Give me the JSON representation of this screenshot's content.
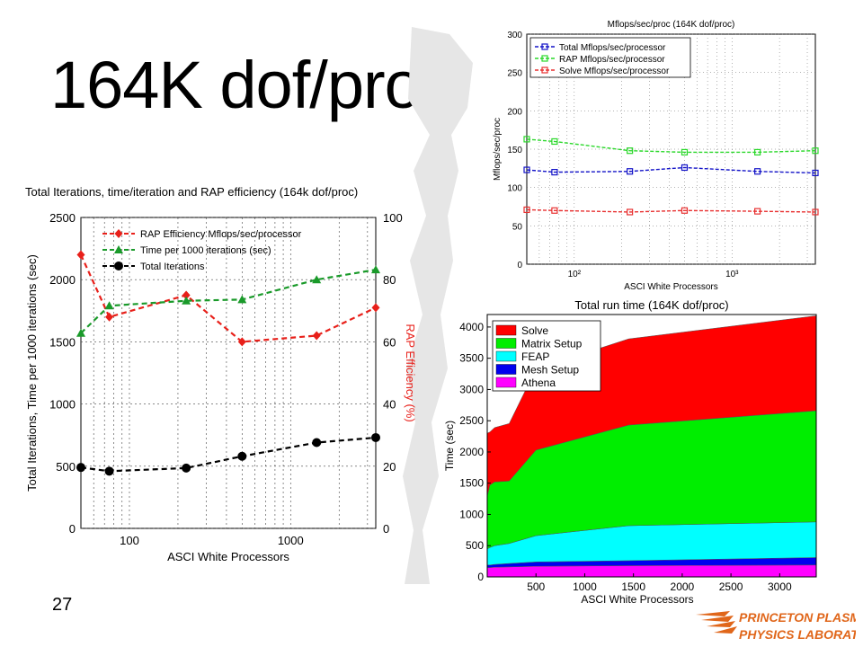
{
  "slide": {
    "title": "164K dof/proc",
    "page_number": "27",
    "logo_line1": "PRINCETON PLASMA",
    "logo_line2": "PHYSICS LABORATORY"
  },
  "colors": {
    "red": "#e8201a",
    "green": "#1a9a2a",
    "black": "#000000",
    "blue": "#1414c8",
    "light_green": "#2ad82a",
    "light_red": "#e83030",
    "solve": "#ff0000",
    "matrix_setup": "#00ee00",
    "feap": "#00ffff",
    "mesh_setup": "#0000ee",
    "athena": "#ff00ff",
    "logo": "#e0661a"
  },
  "chart_data": [
    {
      "type": "line",
      "title": "Total Iterations, time/iteration and RAP efficiency (164k dof/proc)",
      "xlabel": "ASCI White Processors",
      "ylabel": "Total Iterations, Time per 1000 iterations (sec)",
      "y2label": "RAP Efficiency (%)",
      "xscale": "log",
      "xlim": [
        50,
        3375
      ],
      "xticks": [
        100,
        1000
      ],
      "xtick_labels": [
        "100",
        "1000"
      ],
      "ylim": [
        0,
        2500
      ],
      "yticks": [
        0,
        500,
        1000,
        1500,
        2000,
        2500
      ],
      "y2lim": [
        0,
        100
      ],
      "y2ticks": [
        0,
        20,
        40,
        60,
        80,
        100
      ],
      "grid": true,
      "legend_position": "top-left",
      "series": [
        {
          "name": "RAP Efficiency Mflops/sec/processor",
          "axis": "right",
          "marker": "diamond",
          "color": "#e8201a",
          "x": [
            50,
            75,
            225,
            500,
            1450,
            3375
          ],
          "y": [
            88,
            68,
            75,
            60,
            62,
            71
          ]
        },
        {
          "name": "Time per 1000 iterations (sec)",
          "axis": "left",
          "marker": "triangle",
          "color": "#1a9a2a",
          "x": [
            50,
            75,
            225,
            500,
            1450,
            3375
          ],
          "y": [
            1570,
            1790,
            1830,
            1840,
            2000,
            2080
          ]
        },
        {
          "name": "Total Iterations",
          "axis": "left",
          "marker": "circle",
          "color": "#000000",
          "x": [
            50,
            75,
            225,
            500,
            1450,
            3375
          ],
          "y": [
            490,
            460,
            485,
            580,
            690,
            730
          ]
        }
      ]
    },
    {
      "type": "line",
      "title": "Mflops/sec/proc (164K dof/proc)",
      "xlabel": "ASCI White Processors",
      "ylabel": "Mflops/sec/proc",
      "xscale": "log",
      "xlim": [
        50,
        3375
      ],
      "xticks": [
        100,
        1000
      ],
      "xtick_labels": [
        "10²",
        "10³"
      ],
      "ylim": [
        0,
        300
      ],
      "yticks": [
        0,
        50,
        100,
        150,
        200,
        250,
        300
      ],
      "grid": true,
      "legend_position": "top-left",
      "series": [
        {
          "name": "Total Mflops/sec/processor",
          "marker": "square",
          "color": "#1414c8",
          "x": [
            50,
            75,
            225,
            500,
            1450,
            3375
          ],
          "y": [
            123,
            120,
            121,
            126,
            121,
            119
          ]
        },
        {
          "name": "RAP Mflops/sec/processor",
          "marker": "square",
          "color": "#2ad82a",
          "x": [
            50,
            75,
            225,
            500,
            1450,
            3375
          ],
          "y": [
            163,
            160,
            148,
            146,
            146,
            148
          ]
        },
        {
          "name": "Solve Mflops/sec/processor",
          "marker": "square",
          "color": "#e83030",
          "x": [
            50,
            75,
            225,
            500,
            1450,
            3375
          ],
          "y": [
            71,
            70,
            68,
            70,
            69,
            68
          ]
        }
      ]
    },
    {
      "type": "area",
      "stacked": true,
      "title": "Total run time (164K dof/proc)",
      "xlabel": "ASCI White Processors",
      "ylabel": "Time (sec)",
      "xlim": [
        0,
        3375
      ],
      "xticks": [
        500,
        1000,
        1500,
        2000,
        2500,
        3000
      ],
      "ylim": [
        0,
        4200
      ],
      "yticks": [
        0,
        500,
        1000,
        1500,
        2000,
        2500,
        3000,
        3500,
        4000
      ],
      "legend_position": "top-left",
      "x": [
        1,
        27,
        75,
        225,
        500,
        1450,
        3375
      ],
      "series": [
        {
          "name": "Athena",
          "color": "#ff00ff",
          "values": [
            150,
            150,
            155,
            160,
            170,
            180,
            190
          ]
        },
        {
          "name": "Mesh Setup",
          "color": "#0000ee",
          "values": [
            40,
            40,
            45,
            55,
            70,
            80,
            120
          ]
        },
        {
          "name": "FEAP",
          "color": "#00ffff",
          "values": [
            260,
            280,
            300,
            320,
            420,
            560,
            570
          ]
        },
        {
          "name": "Matrix Setup",
          "color": "#00ee00",
          "values": [
            850,
            1000,
            1020,
            1000,
            1370,
            1610,
            1780
          ]
        },
        {
          "name": "Solve",
          "color": "#ff0000",
          "values": [
            1000,
            850,
            870,
            920,
            1300,
            1380,
            1520
          ]
        }
      ]
    }
  ]
}
